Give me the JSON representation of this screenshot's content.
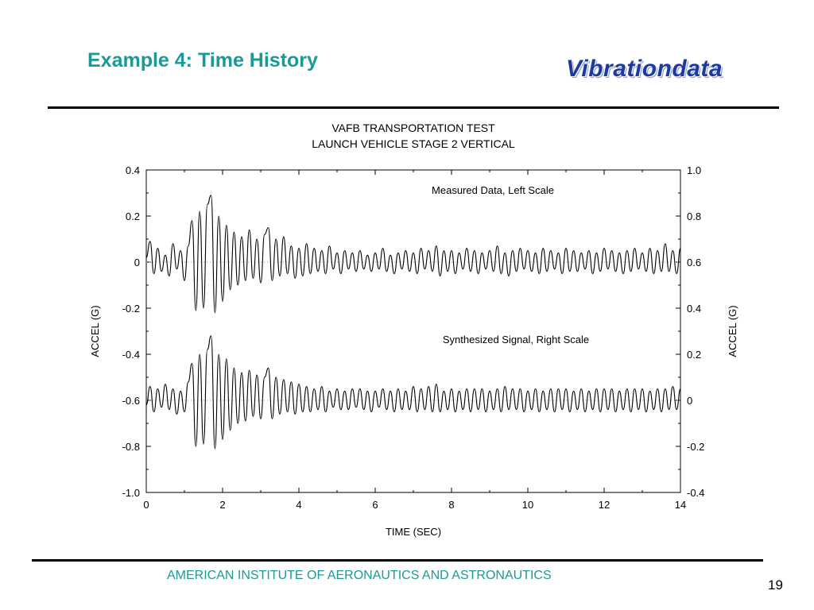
{
  "slide": {
    "title": "Example 4:  Time History",
    "brand": "Vibrationdata",
    "footer": "AMERICAN INSTITUTE OF AERONAUTICS AND ASTRONAUTICS",
    "page_number": "19"
  },
  "colors": {
    "title": "#1a9a96",
    "brand": "#1f3a9a",
    "footer": "#1a9a96"
  },
  "chart_data": {
    "type": "line",
    "title": [
      "VAFB TRANSPORTATION TEST",
      "LAUNCH VEHICLE  STAGE 2 VERTICAL"
    ],
    "xlabel": "TIME (SEC)",
    "ylabel_left": "ACCEL (G)",
    "ylabel_right": "ACCEL (G)",
    "xlim": [
      0,
      14
    ],
    "ylim_left": [
      -1.0,
      0.4
    ],
    "ylim_right": [
      -0.4,
      1.0
    ],
    "x_ticks": [
      "0",
      "2",
      "4",
      "6",
      "8",
      "10",
      "12",
      "14"
    ],
    "y_ticks_left": [
      "0.4",
      "0.2",
      "0",
      "-0.2",
      "-0.4",
      "-0.6",
      "-0.8",
      "-1.0"
    ],
    "y_ticks_right": [
      "1.0",
      "0.8",
      "0.6",
      "0.4",
      "0.2",
      "0",
      "-0.2",
      "-0.4"
    ],
    "grid": false,
    "annotations": [
      "Measured Data, Left Scale",
      "Synthesized Signal, Right Scale"
    ],
    "series": [
      {
        "axis": "left",
        "baseline": 0,
        "x": [
          0,
          0.1,
          0.2,
          0.3,
          0.4,
          0.5,
          0.6,
          0.7,
          0.8,
          0.9,
          1.0,
          1.1,
          1.2,
          1.3,
          1.4,
          1.5,
          1.6,
          1.7,
          1.8,
          1.9,
          2.0,
          2.1,
          2.2,
          2.3,
          2.4,
          2.5,
          2.6,
          2.7,
          2.8,
          2.9,
          3.0,
          3.1,
          3.2,
          3.3,
          3.4,
          3.5,
          3.6,
          3.7,
          3.8,
          3.9,
          4.0,
          4.1,
          4.2,
          4.3,
          4.4,
          4.5,
          4.6,
          4.7,
          4.8,
          4.9,
          5.0,
          5.1,
          5.2,
          5.3,
          5.4,
          5.5,
          5.6,
          5.7,
          5.8,
          5.9,
          6.0,
          6.1,
          6.2,
          6.3,
          6.4,
          6.5,
          6.6,
          6.7,
          6.8,
          6.9,
          7.0,
          7.1,
          7.2,
          7.3,
          7.4,
          7.5,
          7.6,
          7.7,
          7.8,
          7.9,
          8.0,
          8.1,
          8.2,
          8.3,
          8.4,
          8.5,
          8.6,
          8.7,
          8.8,
          8.9,
          9.0,
          9.1,
          9.2,
          9.3,
          9.4,
          9.5,
          9.6,
          9.7,
          9.8,
          9.9,
          10.0,
          10.1,
          10.2,
          10.3,
          10.4,
          10.5,
          10.6,
          10.7,
          10.8,
          10.9,
          11.0,
          11.1,
          11.2,
          11.3,
          11.4,
          11.5,
          11.6,
          11.7,
          11.8,
          11.9,
          12.0,
          12.1,
          12.2,
          12.3,
          12.4,
          12.5,
          12.6,
          12.7,
          12.8,
          12.9,
          13.0,
          13.1,
          13.2,
          13.3,
          13.4,
          13.5,
          13.6,
          13.7,
          13.8,
          13.9,
          14.0
        ],
        "y": [
          0.02,
          0.09,
          -0.05,
          0.06,
          -0.04,
          0.03,
          -0.06,
          0.08,
          -0.03,
          0.05,
          -0.08,
          0.07,
          0.18,
          -0.21,
          0.22,
          -0.2,
          0.25,
          0.29,
          -0.22,
          0.2,
          -0.17,
          0.16,
          -0.12,
          0.13,
          -0.1,
          0.11,
          -0.08,
          0.14,
          -0.07,
          0.1,
          -0.09,
          0.12,
          0.15,
          -0.08,
          0.1,
          -0.06,
          0.11,
          -0.05,
          0.07,
          -0.07,
          0.06,
          -0.06,
          0.08,
          -0.05,
          0.06,
          -0.04,
          0.05,
          -0.05,
          0.07,
          -0.03,
          0.04,
          -0.05,
          0.05,
          -0.03,
          0.04,
          -0.04,
          0.05,
          -0.03,
          0.03,
          -0.04,
          0.04,
          -0.03,
          0.06,
          -0.04,
          0.03,
          -0.05,
          0.04,
          -0.03,
          0.05,
          -0.04,
          0.04,
          -0.05,
          0.06,
          -0.03,
          0.05,
          -0.04,
          0.07,
          -0.06,
          0.05,
          -0.04,
          0.05,
          -0.05,
          0.04,
          -0.03,
          0.06,
          -0.04,
          0.05,
          -0.05,
          0.04,
          -0.03,
          0.05,
          -0.04,
          0.07,
          -0.05,
          0.04,
          -0.06,
          0.05,
          -0.04,
          0.06,
          -0.03,
          0.05,
          -0.04,
          0.04,
          -0.05,
          0.06,
          -0.04,
          0.05,
          -0.03,
          0.04,
          -0.05,
          0.06,
          -0.04,
          0.05,
          -0.04,
          0.04,
          -0.03,
          0.05,
          -0.05,
          0.04,
          -0.04,
          0.06,
          -0.03,
          0.05,
          -0.04,
          0.04,
          -0.05,
          0.05,
          -0.04,
          0.06,
          -0.03,
          0.04,
          -0.04,
          0.06,
          -0.05,
          0.05,
          -0.04,
          0.08,
          -0.04,
          0.05,
          -0.05,
          0.06
        ]
      },
      {
        "axis": "right",
        "baseline": 0,
        "x": [
          0,
          0.1,
          0.2,
          0.3,
          0.4,
          0.5,
          0.6,
          0.7,
          0.8,
          0.9,
          1.0,
          1.1,
          1.2,
          1.3,
          1.4,
          1.5,
          1.6,
          1.7,
          1.8,
          1.9,
          2.0,
          2.1,
          2.2,
          2.3,
          2.4,
          2.5,
          2.6,
          2.7,
          2.8,
          2.9,
          3.0,
          3.1,
          3.2,
          3.3,
          3.4,
          3.5,
          3.6,
          3.7,
          3.8,
          3.9,
          4.0,
          4.1,
          4.2,
          4.3,
          4.4,
          4.5,
          4.6,
          4.7,
          4.8,
          4.9,
          5.0,
          5.1,
          5.2,
          5.3,
          5.4,
          5.5,
          5.6,
          5.7,
          5.8,
          5.9,
          6.0,
          6.1,
          6.2,
          6.3,
          6.4,
          6.5,
          6.6,
          6.7,
          6.8,
          6.9,
          7.0,
          7.1,
          7.2,
          7.3,
          7.4,
          7.5,
          7.6,
          7.7,
          7.8,
          7.9,
          8.0,
          8.1,
          8.2,
          8.3,
          8.4,
          8.5,
          8.6,
          8.7,
          8.8,
          8.9,
          9.0,
          9.1,
          9.2,
          9.3,
          9.4,
          9.5,
          9.6,
          9.7,
          9.8,
          9.9,
          10.0,
          10.1,
          10.2,
          10.3,
          10.4,
          10.5,
          10.6,
          10.7,
          10.8,
          10.9,
          11.0,
          11.1,
          11.2,
          11.3,
          11.4,
          11.5,
          11.6,
          11.7,
          11.8,
          11.9,
          12.0,
          12.1,
          12.2,
          12.3,
          12.4,
          12.5,
          12.6,
          12.7,
          12.8,
          12.9,
          13.0,
          13.1,
          13.2,
          13.3,
          13.4,
          13.5,
          13.6,
          13.7,
          13.8,
          13.9,
          14.0
        ],
        "y": [
          -0.02,
          0.06,
          -0.05,
          0.05,
          -0.03,
          0.07,
          -0.04,
          0.05,
          -0.06,
          0.04,
          -0.05,
          0.08,
          0.16,
          -0.2,
          0.2,
          -0.19,
          0.22,
          0.28,
          -0.21,
          0.2,
          -0.17,
          0.18,
          -0.13,
          0.14,
          -0.1,
          0.12,
          -0.09,
          0.13,
          -0.07,
          0.11,
          -0.08,
          0.1,
          0.14,
          -0.08,
          0.1,
          -0.06,
          0.09,
          -0.05,
          0.08,
          -0.06,
          0.07,
          -0.05,
          0.06,
          -0.05,
          0.05,
          -0.04,
          0.06,
          -0.05,
          0.04,
          -0.03,
          0.05,
          -0.04,
          0.04,
          -0.04,
          0.05,
          -0.03,
          0.05,
          -0.04,
          0.04,
          -0.05,
          0.04,
          -0.03,
          0.05,
          -0.04,
          0.04,
          -0.05,
          0.05,
          -0.04,
          0.04,
          -0.04,
          0.06,
          -0.05,
          0.05,
          -0.04,
          0.06,
          -0.05,
          0.07,
          -0.05,
          0.04,
          -0.04,
          0.05,
          -0.05,
          0.04,
          -0.04,
          0.05,
          -0.05,
          0.05,
          -0.04,
          0.05,
          -0.05,
          0.04,
          -0.04,
          0.05,
          -0.05,
          0.06,
          -0.04,
          0.05,
          -0.04,
          0.05,
          -0.05,
          0.04,
          -0.04,
          0.05,
          -0.05,
          0.04,
          -0.04,
          0.05,
          -0.05,
          0.05,
          -0.04,
          0.05,
          -0.05,
          0.04,
          -0.04,
          0.05,
          -0.05,
          0.04,
          -0.04,
          0.05,
          -0.05,
          0.05,
          -0.04,
          0.05,
          -0.05,
          0.04,
          -0.04,
          0.05,
          -0.05,
          0.05,
          -0.04,
          0.05,
          -0.05,
          0.04,
          -0.04,
          0.05,
          -0.05,
          0.05,
          -0.04,
          0.06,
          -0.04,
          0.05
        ]
      }
    ]
  }
}
